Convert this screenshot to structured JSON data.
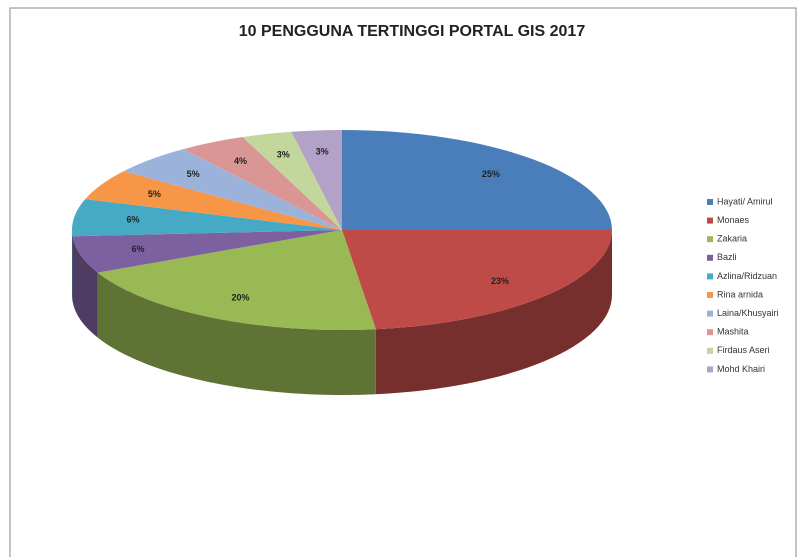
{
  "chart_data": {
    "type": "pie3d",
    "title": "10 PENGGUNA TERTINGGI PORTAL GIS 2017",
    "categories": [
      "Hayati/ Amirul",
      "Monaes",
      "Zakaria",
      "Bazli",
      "Azlina/Ridzuan",
      "Rina arnida",
      "Laina/Khusyairi",
      "Mashita",
      "Firdaus Aseri",
      "Mohd Khairi"
    ],
    "values": [
      25,
      23,
      20,
      6,
      6,
      5,
      5,
      4,
      3,
      3
    ],
    "value_labels": [
      "25%",
      "23%",
      "20%",
      "6%",
      "6%",
      "5%",
      "5%",
      "4%",
      "3%",
      "3%"
    ],
    "colors": [
      "#4a7ebb",
      "#be4b48",
      "#98b954",
      "#7d60a0",
      "#46aac5",
      "#f79646",
      "#9bb3db",
      "#d99694",
      "#c3d69b",
      "#b3a2c7"
    ],
    "legend": "right"
  }
}
